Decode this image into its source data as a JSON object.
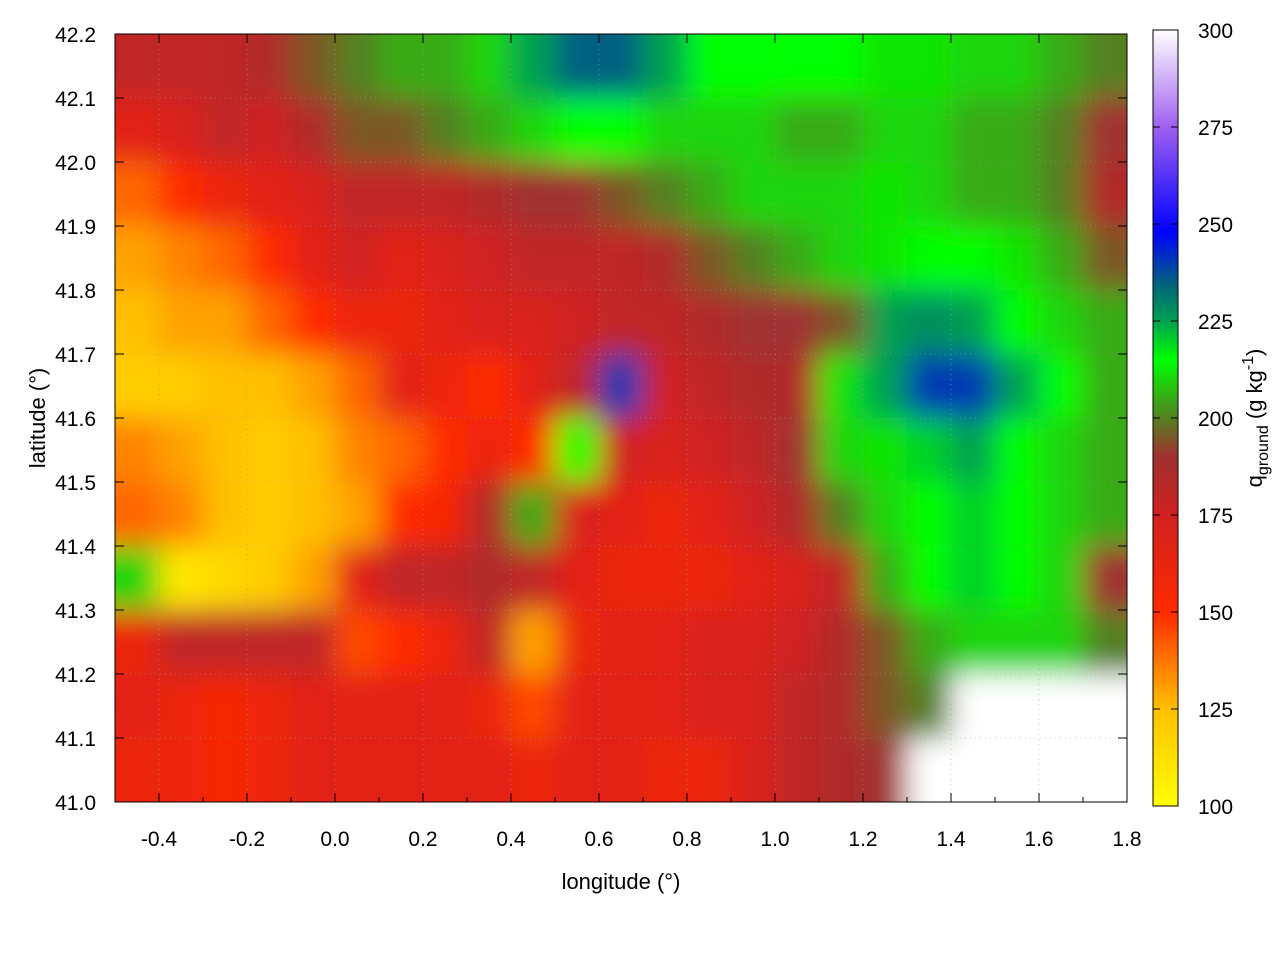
{
  "chart_data": {
    "type": "heatmap",
    "title": "",
    "xlabel": "longitude (°)",
    "ylabel": "latitude (°)",
    "colorbar_label": "q",
    "colorbar_label_sub": "ground",
    "colorbar_label_unit": " (g kg",
    "colorbar_label_sup": "-1",
    "colorbar_label_close": ")",
    "xlim": [
      -0.5,
      1.8
    ],
    "ylim": [
      41.0,
      42.2
    ],
    "clim": [
      100,
      300
    ],
    "grid": true,
    "x_ticks": [
      "-0.4",
      "-0.2",
      "0.0",
      "0.2",
      "0.4",
      "0.6",
      "0.8",
      "1.0",
      "1.2",
      "1.4",
      "1.6",
      "1.8"
    ],
    "y_ticks": [
      "41.0",
      "41.1",
      "41.2",
      "41.3",
      "41.4",
      "41.5",
      "41.6",
      "41.7",
      "41.8",
      "41.9",
      "42.0",
      "42.1",
      "42.2"
    ],
    "colorbar_ticks": [
      "100",
      "125",
      "150",
      "175",
      "200",
      "225",
      "250",
      "275",
      "300"
    ],
    "colormap": [
      {
        "value": 100,
        "color": "#ffff00"
      },
      {
        "value": 125,
        "color": "#ffc000"
      },
      {
        "value": 150,
        "color": "#ff2a00"
      },
      {
        "value": 175,
        "color": "#d02020"
      },
      {
        "value": 190,
        "color": "#a03030"
      },
      {
        "value": 200,
        "color": "#558020"
      },
      {
        "value": 215,
        "color": "#00ff00"
      },
      {
        "value": 225,
        "color": "#00a050"
      },
      {
        "value": 235,
        "color": "#006080"
      },
      {
        "value": 248,
        "color": "#0000ff"
      },
      {
        "value": 275,
        "color": "#a060f0"
      },
      {
        "value": 300,
        "color": "#ffffff"
      }
    ],
    "missing_color": "#ffffff",
    "grid_lon": [
      -0.45,
      -0.35,
      -0.25,
      -0.15,
      -0.05,
      0.05,
      0.15,
      0.25,
      0.35,
      0.45,
      0.55,
      0.65,
      0.75,
      0.85,
      0.95,
      1.05,
      1.15,
      1.25,
      1.35,
      1.45,
      1.55,
      1.65,
      1.75
    ],
    "grid_lat": [
      42.15,
      42.05,
      41.95,
      41.85,
      41.75,
      41.65,
      41.55,
      41.45,
      41.35,
      41.25,
      41.15,
      41.05
    ],
    "values": [
      [
        180,
        180,
        180,
        185,
        195,
        200,
        205,
        205,
        210,
        225,
        235,
        235,
        225,
        215,
        215,
        215,
        215,
        212,
        212,
        210,
        210,
        205,
        200
      ],
      [
        165,
        170,
        180,
        175,
        185,
        195,
        195,
        200,
        205,
        210,
        215,
        215,
        210,
        210,
        210,
        205,
        205,
        210,
        210,
        205,
        205,
        200,
        190
      ],
      [
        140,
        150,
        160,
        165,
        170,
        180,
        180,
        180,
        185,
        190,
        190,
        195,
        200,
        205,
        210,
        210,
        210,
        212,
        210,
        205,
        205,
        200,
        185
      ],
      [
        130,
        135,
        140,
        150,
        165,
        175,
        165,
        170,
        175,
        180,
        180,
        180,
        185,
        195,
        200,
        205,
        210,
        212,
        215,
        215,
        212,
        205,
        195
      ],
      [
        125,
        130,
        130,
        140,
        150,
        160,
        160,
        165,
        170,
        170,
        175,
        180,
        180,
        185,
        190,
        190,
        195,
        225,
        228,
        225,
        215,
        210,
        205
      ],
      [
        120,
        120,
        125,
        125,
        130,
        140,
        165,
        160,
        150,
        165,
        180,
        240,
        175,
        180,
        185,
        185,
        212,
        225,
        240,
        240,
        225,
        215,
        205
      ],
      [
        135,
        130,
        125,
        120,
        125,
        135,
        140,
        150,
        160,
        150,
        215,
        175,
        170,
        175,
        180,
        190,
        210,
        212,
        220,
        225,
        215,
        210,
        205
      ],
      [
        140,
        135,
        125,
        120,
        125,
        130,
        150,
        155,
        185,
        205,
        170,
        165,
        160,
        165,
        175,
        185,
        200,
        210,
        215,
        220,
        215,
        210,
        205
      ],
      [
        210,
        110,
        115,
        120,
        130,
        165,
        180,
        180,
        185,
        180,
        165,
        160,
        160,
        160,
        165,
        170,
        180,
        205,
        215,
        220,
        215,
        210,
        190
      ],
      [
        160,
        180,
        180,
        180,
        180,
        145,
        150,
        160,
        180,
        130,
        160,
        165,
        165,
        170,
        170,
        175,
        185,
        195,
        205,
        210,
        210,
        210,
        200
      ],
      [
        165,
        160,
        155,
        160,
        165,
        165,
        165,
        165,
        160,
        145,
        165,
        165,
        165,
        170,
        170,
        180,
        185,
        195,
        200,
        null,
        null,
        null,
        null
      ],
      [
        160,
        160,
        155,
        160,
        165,
        165,
        165,
        165,
        165,
        160,
        165,
        165,
        160,
        160,
        170,
        180,
        185,
        190,
        null,
        null,
        null,
        null,
        null
      ]
    ]
  }
}
